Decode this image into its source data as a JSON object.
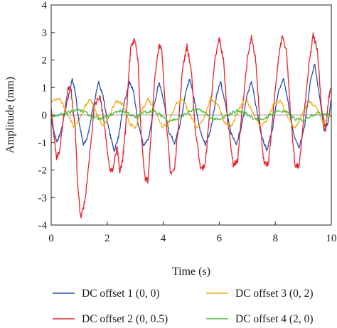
{
  "chart_data": {
    "type": "line",
    "title": "",
    "xlabel": "Time (s)",
    "ylabel": "Amplitude (mm)",
    "xlim": [
      0,
      10
    ],
    "ylim": [
      -4,
      4
    ],
    "x_ticks": [
      0,
      2,
      4,
      6,
      8,
      10
    ],
    "y_ticks": [
      -4,
      -3,
      -2,
      -1,
      0,
      1,
      2,
      3,
      4
    ],
    "grid": false,
    "legend_position": "bottom",
    "series": [
      {
        "name": "DC offset 1 (0, 0)",
        "color": "#2a4da8",
        "points": [
          [
            0,
            -0.2
          ],
          [
            0.2,
            -1.0
          ],
          [
            0.35,
            -0.6
          ],
          [
            0.6,
            0.6
          ],
          [
            0.75,
            1.3
          ],
          [
            0.85,
            0.9
          ],
          [
            1.0,
            -0.3
          ],
          [
            1.15,
            -1.1
          ],
          [
            1.3,
            -0.8
          ],
          [
            1.5,
            0.3
          ],
          [
            1.7,
            1.2
          ],
          [
            1.85,
            0.7
          ],
          [
            2.05,
            -0.5
          ],
          [
            2.25,
            -1.3
          ],
          [
            2.4,
            -0.8
          ],
          [
            2.6,
            0.4
          ],
          [
            2.8,
            1.2
          ],
          [
            2.95,
            0.8
          ],
          [
            3.1,
            -0.3
          ],
          [
            3.3,
            -1.1
          ],
          [
            3.5,
            -0.8
          ],
          [
            3.7,
            0.5
          ],
          [
            3.85,
            1.2
          ],
          [
            4.0,
            0.6
          ],
          [
            4.2,
            -0.6
          ],
          [
            4.4,
            -1.0
          ],
          [
            4.6,
            -0.4
          ],
          [
            4.8,
            0.8
          ],
          [
            4.95,
            1.3
          ],
          [
            5.1,
            0.6
          ],
          [
            5.3,
            -0.5
          ],
          [
            5.5,
            -1.1
          ],
          [
            5.7,
            -0.5
          ],
          [
            5.9,
            0.7
          ],
          [
            6.05,
            1.2
          ],
          [
            6.2,
            0.5
          ],
          [
            6.4,
            -0.6
          ],
          [
            6.6,
            -1.1
          ],
          [
            6.8,
            -0.4
          ],
          [
            7.0,
            0.8
          ],
          [
            7.15,
            1.2
          ],
          [
            7.3,
            0.4
          ],
          [
            7.5,
            -0.7
          ],
          [
            7.7,
            -1.3
          ],
          [
            7.9,
            -0.5
          ],
          [
            8.1,
            0.8
          ],
          [
            8.3,
            1.3
          ],
          [
            8.45,
            0.5
          ],
          [
            8.65,
            -0.7
          ],
          [
            8.85,
            -1.2
          ],
          [
            9.05,
            -0.4
          ],
          [
            9.25,
            1.2
          ],
          [
            9.4,
            1.9
          ],
          [
            9.55,
            0.9
          ],
          [
            9.75,
            -0.6
          ],
          [
            9.9,
            -0.2
          ],
          [
            10.0,
            0.6
          ]
        ]
      },
      {
        "name": "DC offset 2 (0, 0.5)",
        "color": "#e8202a",
        "points": [
          [
            0,
            0.2
          ],
          [
            0.1,
            -0.8
          ],
          [
            0.2,
            -1.6
          ],
          [
            0.3,
            -1.3
          ],
          [
            0.45,
            0.0
          ],
          [
            0.6,
            0.9
          ],
          [
            0.7,
            1.0
          ],
          [
            0.85,
            -0.4
          ],
          [
            0.95,
            -2.6
          ],
          [
            1.05,
            -3.7
          ],
          [
            1.2,
            -3.2
          ],
          [
            1.4,
            -1.2
          ],
          [
            1.55,
            0.4
          ],
          [
            1.75,
            0.7
          ],
          [
            1.95,
            -0.8
          ],
          [
            2.1,
            -2.0
          ],
          [
            2.2,
            -2.0
          ],
          [
            2.35,
            -1.2
          ],
          [
            2.45,
            -2.1
          ],
          [
            2.55,
            -1.6
          ],
          [
            2.65,
            -0.6
          ],
          [
            2.75,
            1.2
          ],
          [
            2.85,
            2.6
          ],
          [
            3.0,
            2.7
          ],
          [
            3.1,
            2.0
          ],
          [
            3.2,
            -0.5
          ],
          [
            3.35,
            -2.3
          ],
          [
            3.45,
            -2.4
          ],
          [
            3.55,
            -1.0
          ],
          [
            3.7,
            1.4
          ],
          [
            3.85,
            2.6
          ],
          [
            3.95,
            2.3
          ],
          [
            4.1,
            0.0
          ],
          [
            4.25,
            -2.1
          ],
          [
            4.4,
            -2.0
          ],
          [
            4.55,
            -0.2
          ],
          [
            4.7,
            1.8
          ],
          [
            4.85,
            2.5
          ],
          [
            5.0,
            1.6
          ],
          [
            5.15,
            -0.6
          ],
          [
            5.35,
            -2.0
          ],
          [
            5.5,
            -1.8
          ],
          [
            5.65,
            0.0
          ],
          [
            5.85,
            2.0
          ],
          [
            6.0,
            2.8
          ],
          [
            6.15,
            2.0
          ],
          [
            6.3,
            -0.2
          ],
          [
            6.5,
            -1.8
          ],
          [
            6.65,
            -1.7
          ],
          [
            6.8,
            0.0
          ],
          [
            7.0,
            2.0
          ],
          [
            7.15,
            2.8
          ],
          [
            7.3,
            2.0
          ],
          [
            7.45,
            -0.2
          ],
          [
            7.6,
            -1.8
          ],
          [
            7.75,
            -1.8
          ],
          [
            7.9,
            -0.2
          ],
          [
            8.1,
            2.0
          ],
          [
            8.25,
            2.9
          ],
          [
            8.4,
            2.3
          ],
          [
            8.55,
            0.0
          ],
          [
            8.7,
            -1.8
          ],
          [
            8.85,
            -1.9
          ],
          [
            9.0,
            -0.3
          ],
          [
            9.2,
            1.8
          ],
          [
            9.35,
            2.9
          ],
          [
            9.5,
            2.4
          ],
          [
            9.65,
            0.3
          ],
          [
            9.8,
            -0.6
          ],
          [
            9.9,
            0.6
          ],
          [
            10.0,
            1.0
          ]
        ]
      },
      {
        "name": "DC offset 3 (0, 2)",
        "color": "#f0ab1a",
        "points": [
          [
            0,
            0.5
          ],
          [
            0.3,
            0.6
          ],
          [
            0.55,
            0.1
          ],
          [
            0.8,
            -0.4
          ],
          [
            1.0,
            -0.2
          ],
          [
            1.2,
            0.3
          ],
          [
            1.4,
            0.6
          ],
          [
            1.6,
            0.1
          ],
          [
            1.85,
            -0.4
          ],
          [
            2.05,
            -0.1
          ],
          [
            2.3,
            0.5
          ],
          [
            2.55,
            0.4
          ],
          [
            2.8,
            -0.3
          ],
          [
            3.0,
            -0.5
          ],
          [
            3.2,
            0.1
          ],
          [
            3.45,
            0.6
          ],
          [
            3.7,
            0.2
          ],
          [
            3.95,
            -0.4
          ],
          [
            4.2,
            -0.3
          ],
          [
            4.45,
            0.4
          ],
          [
            4.7,
            0.6
          ],
          [
            4.95,
            0.0
          ],
          [
            5.2,
            -0.5
          ],
          [
            5.45,
            -0.1
          ],
          [
            5.7,
            0.6
          ],
          [
            5.95,
            0.4
          ],
          [
            6.2,
            -0.3
          ],
          [
            6.45,
            -0.4
          ],
          [
            6.7,
            0.2
          ],
          [
            6.95,
            0.6
          ],
          [
            7.2,
            0.1
          ],
          [
            7.45,
            -0.4
          ],
          [
            7.7,
            -0.2
          ],
          [
            7.95,
            0.4
          ],
          [
            8.2,
            0.5
          ],
          [
            8.45,
            -0.1
          ],
          [
            8.7,
            -0.5
          ],
          [
            8.95,
            0.0
          ],
          [
            9.2,
            0.5
          ],
          [
            9.45,
            0.3
          ],
          [
            9.7,
            -0.3
          ],
          [
            10.0,
            0.0
          ]
        ]
      },
      {
        "name": "DC offset 4 (2, 0)",
        "color": "#4dbd3a",
        "points": [
          [
            0,
            -0.1
          ],
          [
            0.3,
            0.0
          ],
          [
            0.6,
            0.1
          ],
          [
            0.9,
            0.2
          ],
          [
            1.2,
            0.1
          ],
          [
            1.5,
            -0.1
          ],
          [
            1.8,
            -0.15
          ],
          [
            2.1,
            0.0
          ],
          [
            2.4,
            0.15
          ],
          [
            2.7,
            0.1
          ],
          [
            3.0,
            -0.1
          ],
          [
            3.3,
            0.1
          ],
          [
            3.6,
            0.15
          ],
          [
            3.9,
            0.0
          ],
          [
            4.2,
            -0.2
          ],
          [
            4.5,
            -0.15
          ],
          [
            4.8,
            0.05
          ],
          [
            5.1,
            0.2
          ],
          [
            5.4,
            0.15
          ],
          [
            5.7,
            -0.1
          ],
          [
            6.0,
            -0.2
          ],
          [
            6.3,
            0.0
          ],
          [
            6.6,
            0.15
          ],
          [
            6.9,
            0.1
          ],
          [
            7.2,
            -0.1
          ],
          [
            7.5,
            -0.2
          ],
          [
            7.8,
            0.0
          ],
          [
            8.1,
            0.15
          ],
          [
            8.4,
            0.1
          ],
          [
            8.7,
            -0.15
          ],
          [
            9.0,
            -0.2
          ],
          [
            9.3,
            0.0
          ],
          [
            9.6,
            0.1
          ],
          [
            10.0,
            0.0
          ]
        ]
      }
    ]
  }
}
